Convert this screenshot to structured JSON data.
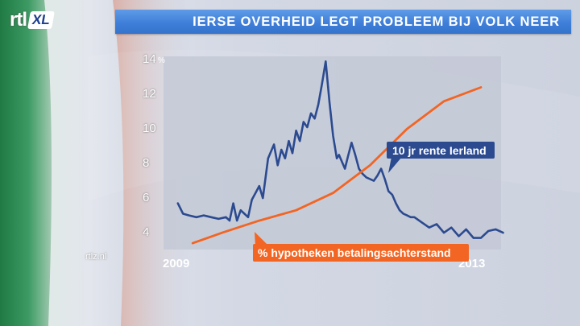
{
  "branding": {
    "logo_main": "rtl",
    "logo_badge": "XL",
    "watermark": "rtlz.nl"
  },
  "header": {
    "title": "IERSE OVERHEID LEGT PROBLEEM BIJ VOLK NEER"
  },
  "colors": {
    "title_bar": "#3f7fd9",
    "rate_series": "#2b4a8f",
    "arrears_series": "#f26522",
    "plot_area": "#c3c8d6"
  },
  "chart_data": {
    "type": "line",
    "title": "",
    "xlabel": "",
    "ylabel": "%",
    "x_tick_labels": [
      {
        "label": "2009",
        "x": 2009.0
      },
      {
        "label": "2013",
        "x": 2013.0
      }
    ],
    "y_ticks": [
      4,
      6,
      8,
      10,
      12,
      14
    ],
    "y_unit_label": "%",
    "xlim": [
      2008.9,
      2013.3
    ],
    "ylim": [
      2.8,
      14.2
    ],
    "grid": false,
    "series": [
      {
        "name": "10 jr rente Ierland",
        "color": "#2b4a8f",
        "x": [
          2008.9,
          2008.97,
          2009.05,
          2009.15,
          2009.25,
          2009.35,
          2009.45,
          2009.55,
          2009.6,
          2009.65,
          2009.7,
          2009.75,
          2009.8,
          2009.85,
          2009.9,
          2009.95,
          2010.0,
          2010.05,
          2010.12,
          2010.2,
          2010.25,
          2010.3,
          2010.35,
          2010.4,
          2010.45,
          2010.5,
          2010.55,
          2010.6,
          2010.65,
          2010.7,
          2010.75,
          2010.8,
          2010.85,
          2010.9,
          2010.95,
          2011.0,
          2011.05,
          2011.08,
          2011.12,
          2011.16,
          2011.2,
          2011.25,
          2011.3,
          2011.35,
          2011.4,
          2011.45,
          2011.5,
          2011.55,
          2011.6,
          2011.65,
          2011.7,
          2011.75,
          2011.8,
          2011.85,
          2011.9,
          2011.95,
          2012.0,
          2012.05,
          2012.1,
          2012.2,
          2012.3,
          2012.4,
          2012.5,
          2012.6,
          2012.7,
          2012.8,
          2012.9,
          2013.0,
          2013.1,
          2013.2,
          2013.3
        ],
        "values": [
          5.6,
          5.0,
          4.9,
          4.8,
          4.9,
          4.8,
          4.7,
          4.8,
          4.6,
          5.6,
          4.6,
          5.2,
          5.0,
          4.8,
          5.8,
          6.2,
          6.6,
          5.9,
          8.2,
          9.0,
          7.8,
          8.7,
          8.2,
          9.2,
          8.5,
          9.8,
          9.2,
          10.3,
          10.0,
          10.8,
          10.5,
          11.3,
          12.5,
          13.8,
          11.5,
          9.5,
          8.2,
          8.4,
          8.0,
          7.6,
          8.3,
          9.1,
          8.4,
          7.6,
          7.3,
          7.1,
          7.0,
          6.9,
          7.2,
          7.6,
          7.0,
          6.3,
          6.1,
          5.6,
          5.2,
          5.0,
          4.9,
          4.8,
          4.8,
          4.5,
          4.2,
          4.4,
          3.9,
          4.2,
          3.7,
          4.1,
          3.6,
          3.6,
          4.0,
          4.1,
          3.9
        ]
      },
      {
        "name": "% hypotheken betalingsachterstand",
        "color": "#f26522",
        "x": [
          2009.1,
          2009.5,
          2010.0,
          2010.5,
          2011.0,
          2011.5,
          2012.0,
          2012.5,
          2013.0
        ],
        "values": [
          3.3,
          3.9,
          4.6,
          5.2,
          6.2,
          7.8,
          9.9,
          11.5,
          12.3
        ]
      }
    ],
    "legend": "inline labels on the series"
  }
}
